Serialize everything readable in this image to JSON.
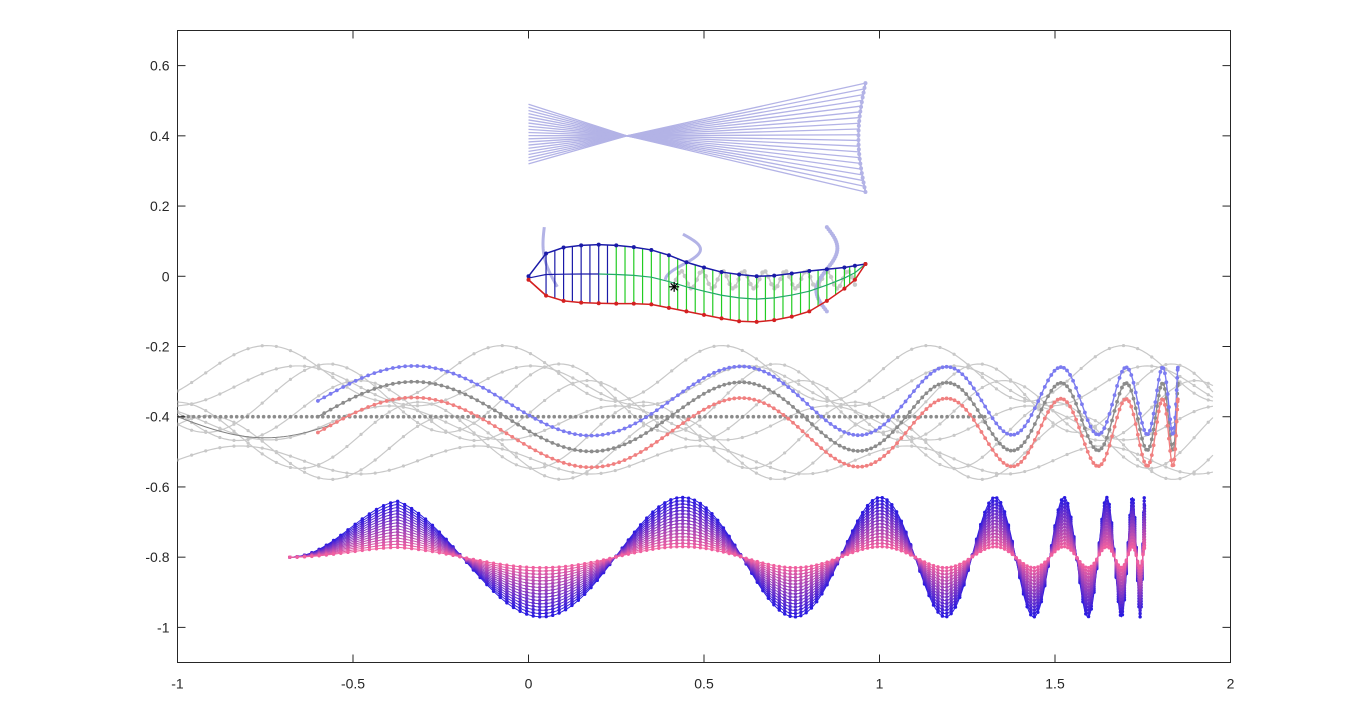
{
  "chart_data": {
    "type": "line",
    "title": "",
    "xlabel": "",
    "ylabel": "",
    "xlim": [
      -1,
      2
    ],
    "ylim": [
      -1.1,
      0.7
    ],
    "grid": false,
    "legend": "none",
    "x_ticks": [
      -1,
      -0.5,
      0,
      0.5,
      1,
      1.5,
      2
    ],
    "x_tick_labels": [
      "-1",
      "-0.5",
      "0",
      "0.5",
      "1",
      "1.5",
      "2"
    ],
    "y_ticks": [
      0.6,
      0.4,
      0.2,
      0,
      -0.2,
      -0.4,
      -0.6,
      -0.8,
      -1
    ],
    "y_tick_labels": [
      "0.6",
      "0.4",
      "0.2",
      "0",
      "-0.2",
      "-0.4",
      "-0.6",
      "-0.8",
      "-1"
    ],
    "colors": {
      "fan": "#b3b3e6",
      "upper_surface": "#1a1aa8",
      "lower_surface": "#d42020",
      "ribs_front": "#1a1aa8",
      "ribs_rear": "#22cc22",
      "camber": "#22aa66",
      "light_grey": "#c8c8c8",
      "dark_grey": "#8c8c8c",
      "blue_light": "#7b7bf0",
      "red_light": "#f08080",
      "wave_blue": "#2a1ae0",
      "wave_pink": "#f060a0"
    },
    "marker": {
      "x": 0.415,
      "y": -0.03,
      "symbol": "asterisk"
    },
    "fan": {
      "x_range": [
        0,
        0.96
      ],
      "waist": [
        0.28,
        0.4
      ],
      "left_y_range": [
        0.32,
        0.49
      ],
      "right_y_range": [
        0.24,
        0.55
      ],
      "line_count": 20
    },
    "airfoil": {
      "x": [
        0,
        0.05,
        0.1,
        0.15,
        0.2,
        0.25,
        0.3,
        0.35,
        0.4,
        0.45,
        0.5,
        0.55,
        0.6,
        0.65,
        0.7,
        0.75,
        0.8,
        0.85,
        0.9,
        0.93,
        0.96
      ],
      "upper": [
        0.0,
        0.065,
        0.082,
        0.088,
        0.09,
        0.088,
        0.083,
        0.075,
        0.06,
        0.04,
        0.025,
        0.012,
        0.005,
        0.0,
        0.002,
        0.008,
        0.015,
        0.02,
        0.025,
        0.03,
        0.035
      ],
      "lower": [
        -0.01,
        -0.055,
        -0.07,
        -0.075,
        -0.077,
        -0.078,
        -0.078,
        -0.08,
        -0.09,
        -0.1,
        -0.11,
        -0.12,
        -0.128,
        -0.13,
        -0.125,
        -0.115,
        -0.1,
        -0.07,
        -0.035,
        -0.01,
        0.035
      ],
      "blue_rib_fraction": 0.2,
      "green_rib_fraction_end": 0.96
    },
    "trail_wave": {
      "x_start": -0.6,
      "x_end": 1.85,
      "center": -0.4,
      "amplitude": 0.1,
      "band_offset": 0.045,
      "wavelength": 0.72,
      "dotted_line_y": -0.4,
      "dotted_line_x": [
        -1,
        1.3
      ]
    },
    "wave_family": {
      "x_start": -0.68,
      "x_end": 1.755,
      "center": -0.8,
      "amplitude_max": 0.17,
      "amplitude_min": 0.03,
      "wavelength": 0.66,
      "curve_count": 16
    }
  }
}
